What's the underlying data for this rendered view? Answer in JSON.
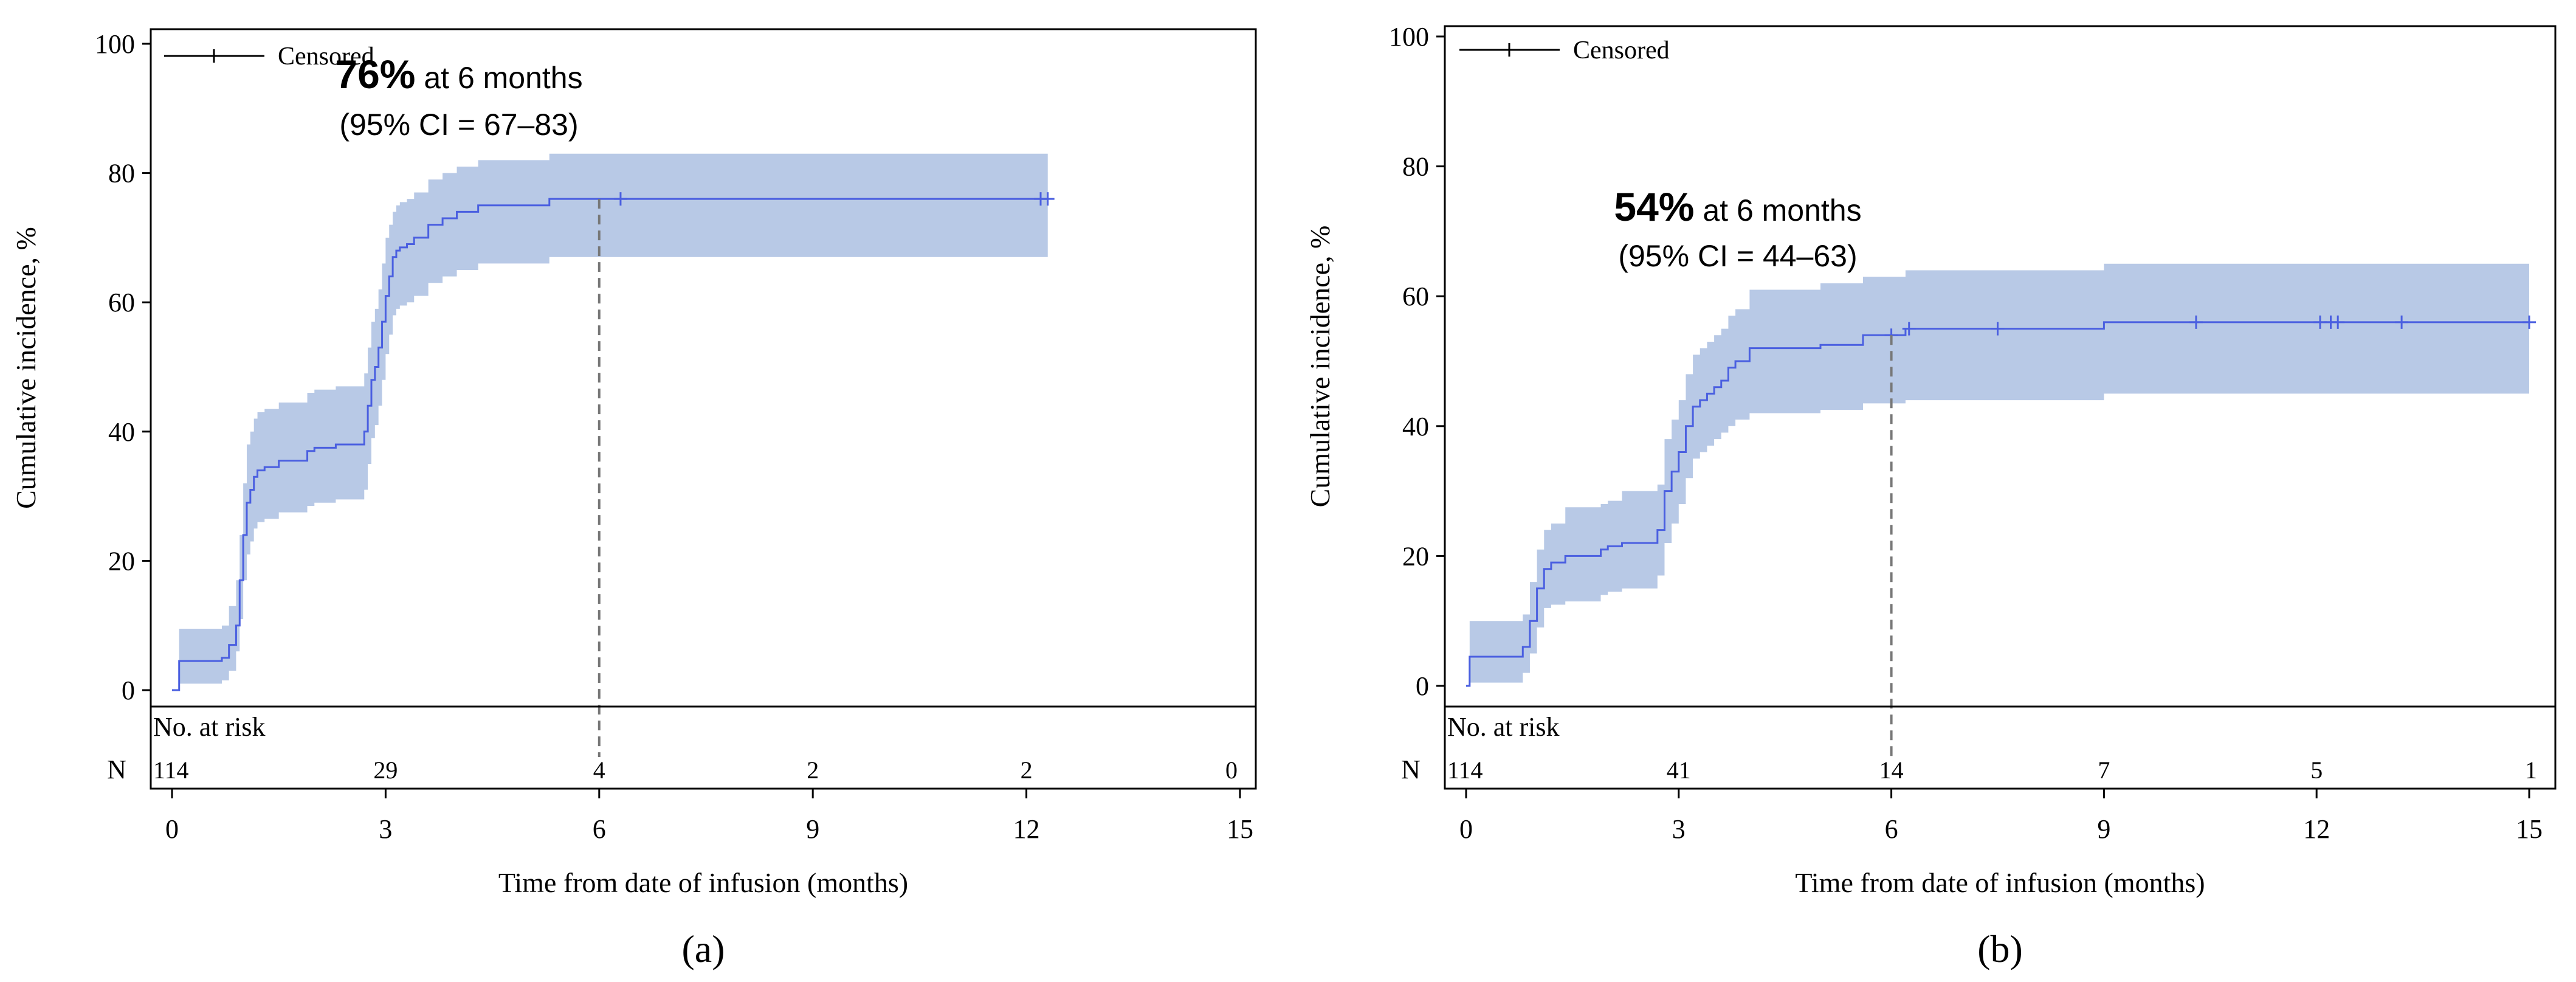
{
  "chart_data": [
    {
      "type": "line",
      "panel_label": "(a)",
      "title": "",
      "xlabel": "Time from date of infusion (months)",
      "ylabel": "Cumulative incidence, %",
      "xlim": [
        0,
        15
      ],
      "ylim": [
        0,
        100
      ],
      "xticks": [
        "0",
        "3",
        "6",
        "9",
        "12",
        "15"
      ],
      "yticks": [
        "0",
        "20",
        "40",
        "60",
        "80",
        "100"
      ],
      "legend": {
        "label": "Censored",
        "position": "top-left"
      },
      "annotation": {
        "value": "76%",
        "text": " at 6 months",
        "ci": "(95% CI = 67–83)"
      },
      "reference_time": 6,
      "risk_table": {
        "title": "No. at risk",
        "row_label": "N",
        "times": [
          0,
          3,
          6,
          9,
          12,
          15
        ],
        "counts": [
          "114",
          "29",
          "4",
          "2",
          "2",
          "0"
        ]
      },
      "series": [
        {
          "name": "Cumulative incidence",
          "x": [
            0,
            0.1,
            0.7,
            0.8,
            0.9,
            0.95,
            1.0,
            1.05,
            1.1,
            1.15,
            1.2,
            1.3,
            1.5,
            1.9,
            2.0,
            2.3,
            2.7,
            2.75,
            2.8,
            2.85,
            2.9,
            2.95,
            3.0,
            3.05,
            3.1,
            3.15,
            3.2,
            3.3,
            3.4,
            3.6,
            3.8,
            4.0,
            4.3,
            5.3,
            12.3
          ],
          "y": [
            0,
            4.5,
            5,
            7,
            10,
            17,
            24,
            29,
            31,
            33,
            34,
            34.5,
            35.5,
            37,
            37.5,
            38,
            40,
            44,
            48,
            50,
            53,
            57,
            61,
            64,
            67,
            68,
            68.5,
            69,
            70,
            72,
            73,
            74,
            75,
            76,
            76
          ],
          "ci_lower": [
            0,
            1,
            1.5,
            3,
            6,
            11,
            17,
            21,
            23,
            25,
            26,
            26.5,
            27.5,
            28.5,
            29,
            29.5,
            31,
            35,
            39,
            41,
            44,
            48,
            52,
            55,
            58,
            59,
            59.5,
            60,
            61,
            63,
            64,
            65,
            66,
            67,
            67
          ],
          "ci_upper": [
            0,
            9.5,
            10,
            13,
            17,
            24,
            32,
            38,
            40,
            42,
            43,
            43.5,
            44.5,
            46,
            46.5,
            47,
            49,
            53,
            57,
            59,
            62,
            66,
            70,
            72,
            74,
            75,
            75.5,
            76,
            77,
            79,
            80,
            81,
            82,
            83,
            83
          ],
          "censored_x": [
            6.3,
            12.2,
            12.3
          ],
          "censored_y": [
            76,
            76,
            76
          ]
        }
      ]
    },
    {
      "type": "line",
      "panel_label": "(b)",
      "title": "",
      "xlabel": "Time from date of infusion (months)",
      "ylabel": "Cumulative incidence, %",
      "xlim": [
        0,
        15
      ],
      "ylim": [
        0,
        100
      ],
      "xticks": [
        "0",
        "3",
        "6",
        "9",
        "12",
        "15"
      ],
      "yticks": [
        "0",
        "20",
        "40",
        "60",
        "80",
        "100"
      ],
      "legend": {
        "label": "Censored",
        "position": "top-left"
      },
      "annotation": {
        "value": "54%",
        "text": " at 6 months",
        "ci": "(95% CI = 44–63)"
      },
      "reference_time": 6,
      "risk_table": {
        "title": "No. at risk",
        "row_label": "N",
        "times": [
          0,
          3,
          6,
          9,
          12,
          15
        ],
        "counts": [
          "114",
          "41",
          "14",
          "7",
          "5",
          "1"
        ]
      },
      "series": [
        {
          "name": "Cumulative incidence",
          "x": [
            0,
            0.05,
            0.8,
            0.9,
            1.0,
            1.1,
            1.2,
            1.4,
            1.9,
            2.0,
            2.2,
            2.7,
            2.8,
            2.9,
            3.0,
            3.1,
            3.2,
            3.3,
            3.4,
            3.5,
            3.6,
            3.7,
            3.8,
            4.0,
            5.0,
            5.6,
            6.2,
            9.0,
            15
          ],
          "y": [
            0,
            4.5,
            6,
            10,
            15,
            18,
            19,
            20,
            21,
            21.5,
            22,
            24,
            30,
            33,
            36,
            40,
            43,
            44,
            45,
            46,
            47,
            49,
            50,
            52,
            52.5,
            54,
            55,
            56,
            56
          ],
          "ci_lower": [
            0,
            0.5,
            2,
            5,
            9,
            12,
            12.5,
            13,
            14,
            14.5,
            15,
            17,
            22,
            25,
            28,
            32,
            35,
            36,
            37,
            38,
            39,
            40,
            41,
            42,
            42.5,
            43.5,
            44,
            45,
            46
          ],
          "ci_upper": [
            0,
            10,
            11,
            16,
            21,
            24,
            25,
            27.5,
            28,
            28.5,
            30,
            31,
            38,
            41,
            44,
            48,
            51,
            52,
            53,
            54,
            55,
            57,
            58,
            61,
            62,
            63,
            64,
            65,
            65
          ],
          "censored_x": [
            6.0,
            6.25,
            7.5,
            10.3,
            12.05,
            12.2,
            12.3,
            13.2,
            15.0
          ],
          "censored_y": [
            54,
            55,
            55,
            56,
            56,
            56,
            56,
            56,
            56
          ]
        }
      ]
    }
  ]
}
